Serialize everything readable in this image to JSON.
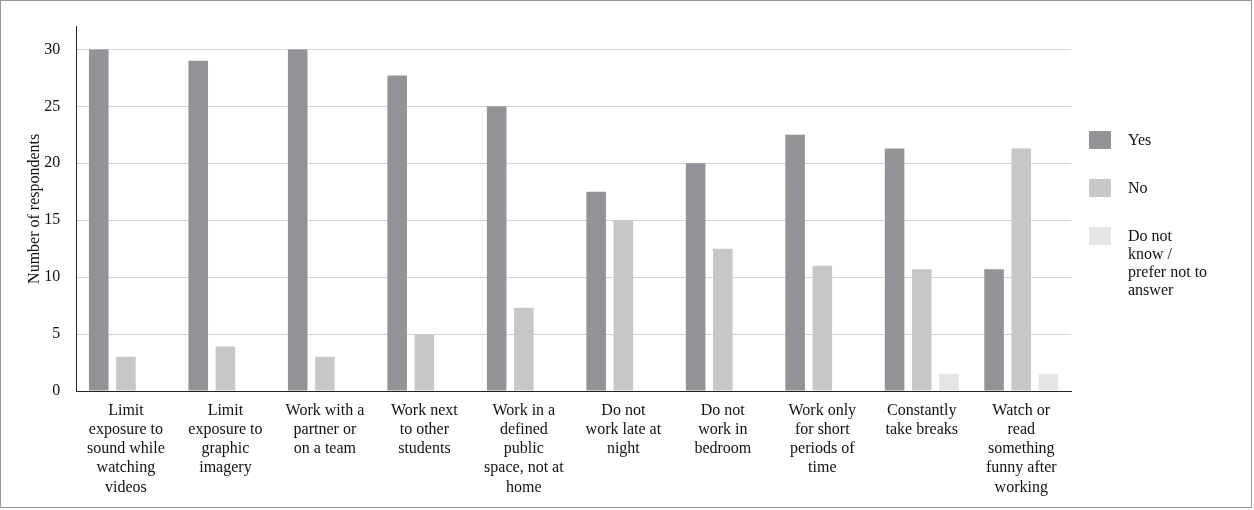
{
  "chart_data": {
    "type": "bar",
    "ylabel": "Number of respondents",
    "categories": [
      "Limit exposure to sound while watching videos",
      "Limit exposure to graphic imagery",
      "Work with a partner or on a team",
      "Work next to other students",
      "Work in a defined public space, not at home",
      "Do not work late at night",
      "Do not work in bedroom",
      "Work only for short periods of time",
      "Constantly take breaks",
      "Watch or read something funny after working"
    ],
    "series": [
      {
        "name": "Yes",
        "color": "#939397",
        "values": [
          30,
          29,
          30,
          27.7,
          25,
          17.5,
          20,
          22.5,
          21.3,
          10.7
        ]
      },
      {
        "name": "No",
        "color": "#c6c7c9",
        "values": [
          3,
          3.9,
          3,
          5,
          7.3,
          15,
          12.5,
          11,
          10.7,
          21.3
        ]
      },
      {
        "name": "Do not know / prefer not to answer",
        "color": "#e4e5e6",
        "values": [
          0,
          0,
          0,
          0,
          0,
          0,
          0,
          0,
          1.5,
          1.5
        ]
      }
    ],
    "ylim": [
      0,
      32
    ],
    "yticks": [
      0,
      5,
      10,
      15,
      20,
      25,
      30
    ],
    "grid": "y",
    "legend": "right"
  }
}
